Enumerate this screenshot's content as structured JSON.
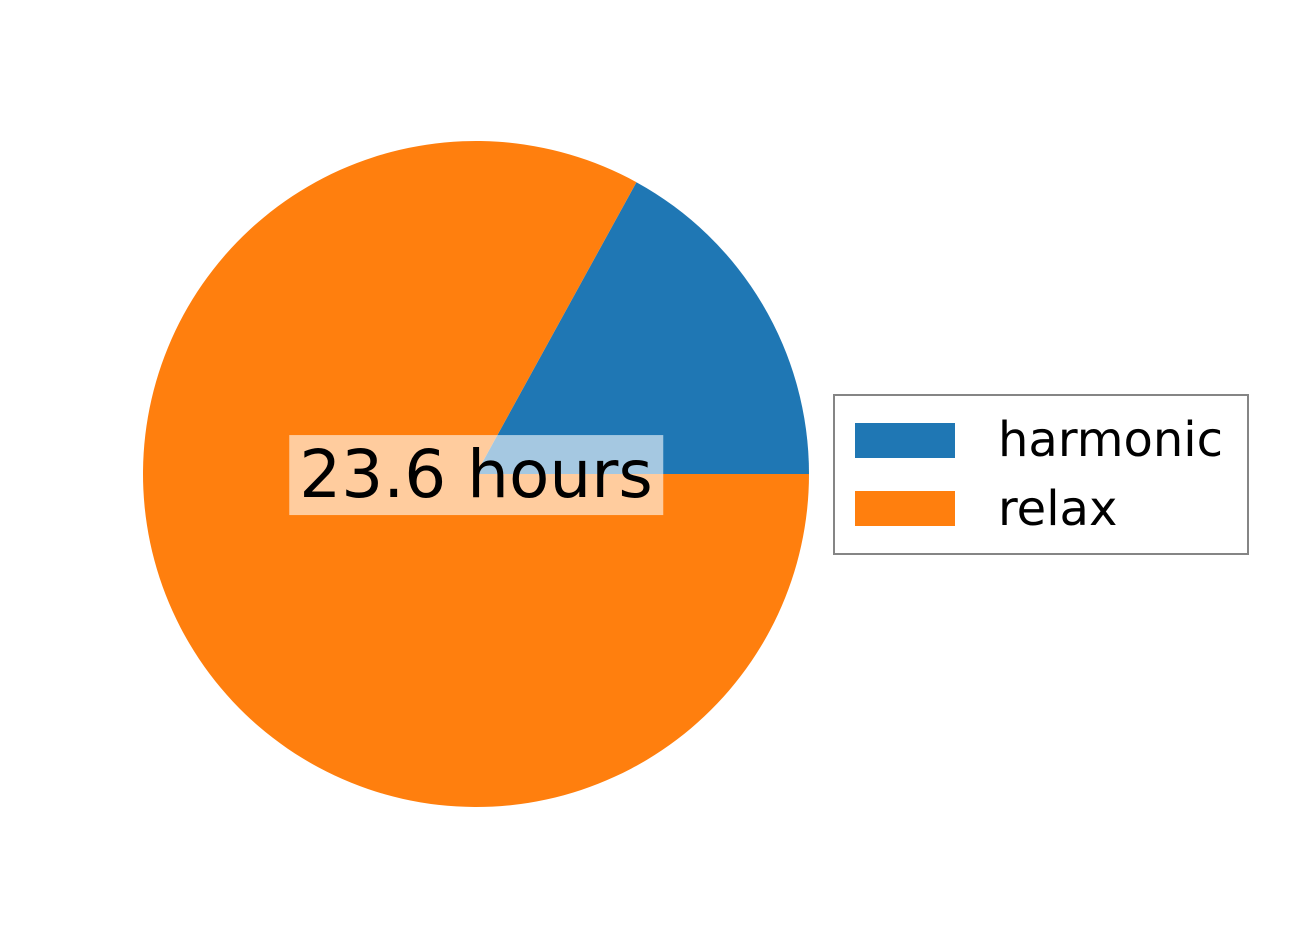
{
  "chart_data": {
    "type": "pie",
    "title": "",
    "background": "#ffffff",
    "start_angle": 0,
    "direction": "counterclockwise",
    "slices": [
      {
        "label": "harmonic",
        "value": 17,
        "color": "#1f77b4"
      },
      {
        "label": "relax",
        "value": 83,
        "color": "#ff7f0e"
      }
    ],
    "center_label": {
      "text": "23.6 hours",
      "text_color": "#000000",
      "bbox_facecolor": "#ffffff",
      "bbox_alpha": 0.6
    },
    "legend": {
      "position": "center right",
      "entries": [
        "harmonic",
        "relax"
      ],
      "border_color": "#858585",
      "background": "#ffffff"
    }
  }
}
